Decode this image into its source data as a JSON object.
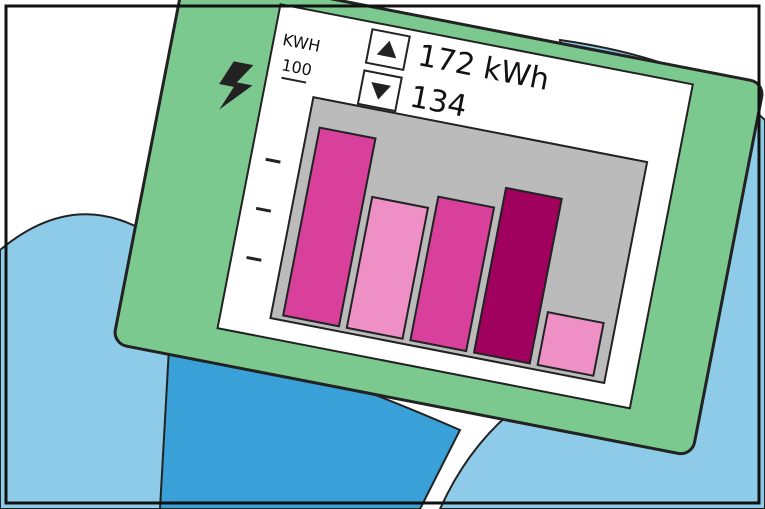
{
  "chart_data": {
    "type": "bar",
    "high_label": "172 kWh",
    "low_label": "134",
    "ylabel": "KWH",
    "categories": [
      null,
      null,
      null,
      null,
      null
    ],
    "values": [
      89,
      62,
      68,
      78,
      25
    ],
    "colors": [
      "#d8409c",
      "#ee90c6",
      "#d8409c",
      "#a0005e",
      "#ee90c6"
    ],
    "ylim": [
      0,
      100
    ],
    "yticks": [
      100
    ]
  }
}
